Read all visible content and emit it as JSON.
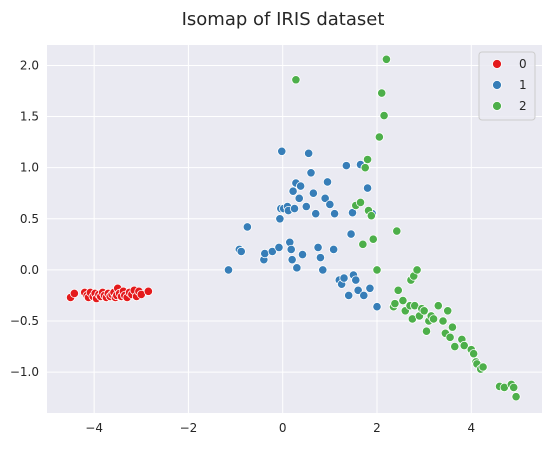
{
  "chart_data": {
    "type": "scatter",
    "title": "Isomap of IRIS dataset",
    "xlabel": "",
    "ylabel": "",
    "xlim": [
      -5.0,
      5.5
    ],
    "ylim": [
      -1.4,
      2.2
    ],
    "xticks": [
      -4,
      -2,
      0,
      2,
      4
    ],
    "xtick_labels": [
      "−4",
      "−2",
      "0",
      "2",
      "4"
    ],
    "yticks": [
      -1.0,
      -0.5,
      0.0,
      0.5,
      1.0,
      1.5,
      2.0
    ],
    "ytick_labels": [
      "−1.0",
      "−0.5",
      "0.0",
      "0.5",
      "1.0",
      "1.5",
      "2.0"
    ],
    "grid": true,
    "legend_position": "top-right",
    "series": [
      {
        "name": "0",
        "color": "#e41a1c",
        "points": [
          [
            -4.5,
            -0.27
          ],
          [
            -4.42,
            -0.23
          ],
          [
            -4.2,
            -0.22
          ],
          [
            -4.15,
            -0.25
          ],
          [
            -4.12,
            -0.27
          ],
          [
            -4.08,
            -0.22
          ],
          [
            -4.02,
            -0.26
          ],
          [
            -3.98,
            -0.23
          ],
          [
            -3.95,
            -0.28
          ],
          [
            -3.9,
            -0.24
          ],
          [
            -3.86,
            -0.26
          ],
          [
            -3.82,
            -0.22
          ],
          [
            -3.78,
            -0.25
          ],
          [
            -3.74,
            -0.27
          ],
          [
            -3.7,
            -0.23
          ],
          [
            -3.66,
            -0.26
          ],
          [
            -3.62,
            -0.24
          ],
          [
            -3.58,
            -0.22
          ],
          [
            -3.55,
            -0.27
          ],
          [
            -3.52,
            -0.25
          ],
          [
            -3.5,
            -0.18
          ],
          [
            -3.46,
            -0.23
          ],
          [
            -3.42,
            -0.26
          ],
          [
            -3.38,
            -0.21
          ],
          [
            -3.35,
            -0.25
          ],
          [
            -3.3,
            -0.27
          ],
          [
            -3.25,
            -0.22
          ],
          [
            -3.2,
            -0.24
          ],
          [
            -3.15,
            -0.2
          ],
          [
            -3.1,
            -0.26
          ],
          [
            -3.05,
            -0.21
          ],
          [
            -3.0,
            -0.24
          ],
          [
            -2.85,
            -0.21
          ]
        ]
      },
      {
        "name": "1",
        "color": "#377eb8",
        "points": [
          [
            -1.15,
            0.0
          ],
          [
            -0.92,
            0.2
          ],
          [
            -0.88,
            0.18
          ],
          [
            -0.75,
            0.42
          ],
          [
            -0.4,
            0.1
          ],
          [
            -0.38,
            0.16
          ],
          [
            -0.22,
            0.18
          ],
          [
            -0.08,
            0.22
          ],
          [
            -0.06,
            0.5
          ],
          [
            -0.04,
            0.6
          ],
          [
            -0.02,
            1.16
          ],
          [
            0.02,
            0.6
          ],
          [
            0.1,
            0.62
          ],
          [
            0.12,
            0.58
          ],
          [
            0.15,
            0.27
          ],
          [
            0.18,
            0.2
          ],
          [
            0.2,
            0.1
          ],
          [
            0.22,
            0.77
          ],
          [
            0.25,
            0.6
          ],
          [
            0.28,
            0.85
          ],
          [
            0.3,
            0.02
          ],
          [
            0.35,
            0.7
          ],
          [
            0.38,
            0.82
          ],
          [
            0.42,
            0.15
          ],
          [
            0.5,
            0.62
          ],
          [
            0.55,
            1.14
          ],
          [
            0.6,
            0.95
          ],
          [
            0.65,
            0.75
          ],
          [
            0.7,
            0.55
          ],
          [
            0.75,
            0.22
          ],
          [
            0.8,
            0.12
          ],
          [
            0.85,
            0.0
          ],
          [
            0.9,
            0.7
          ],
          [
            0.95,
            0.86
          ],
          [
            1.0,
            0.64
          ],
          [
            1.08,
            0.2
          ],
          [
            1.1,
            0.55
          ],
          [
            1.2,
            -0.1
          ],
          [
            1.25,
            -0.14
          ],
          [
            1.3,
            -0.08
          ],
          [
            1.35,
            1.02
          ],
          [
            1.4,
            -0.25
          ],
          [
            1.45,
            0.35
          ],
          [
            1.48,
            0.56
          ],
          [
            1.5,
            -0.05
          ],
          [
            1.55,
            -0.1
          ],
          [
            1.6,
            -0.2
          ],
          [
            1.65,
            1.03
          ],
          [
            1.72,
            -0.25
          ],
          [
            1.8,
            0.8
          ],
          [
            1.85,
            -0.18
          ],
          [
            1.9,
            0.55
          ],
          [
            2.0,
            -0.36
          ]
        ]
      },
      {
        "name": "2",
        "color": "#4daf4a",
        "points": [
          [
            0.28,
            1.86
          ],
          [
            1.55,
            0.63
          ],
          [
            1.65,
            0.66
          ],
          [
            1.7,
            0.25
          ],
          [
            1.75,
            1.0
          ],
          [
            1.8,
            1.08
          ],
          [
            1.82,
            0.58
          ],
          [
            1.88,
            0.53
          ],
          [
            1.92,
            0.3
          ],
          [
            2.0,
            0.0
          ],
          [
            2.05,
            1.3
          ],
          [
            2.1,
            1.73
          ],
          [
            2.15,
            1.51
          ],
          [
            2.2,
            2.06
          ],
          [
            2.35,
            -0.36
          ],
          [
            2.38,
            -0.33
          ],
          [
            2.42,
            0.38
          ],
          [
            2.45,
            -0.2
          ],
          [
            2.55,
            -0.3
          ],
          [
            2.6,
            -0.4
          ],
          [
            2.7,
            -0.35
          ],
          [
            2.72,
            -0.1
          ],
          [
            2.75,
            -0.48
          ],
          [
            2.78,
            -0.06
          ],
          [
            2.8,
            -0.35
          ],
          [
            2.85,
            0.0
          ],
          [
            2.9,
            -0.45
          ],
          [
            2.95,
            -0.38
          ],
          [
            3.0,
            -0.4
          ],
          [
            3.05,
            -0.6
          ],
          [
            3.1,
            -0.5
          ],
          [
            3.15,
            -0.45
          ],
          [
            3.2,
            -0.48
          ],
          [
            3.3,
            -0.35
          ],
          [
            3.4,
            -0.5
          ],
          [
            3.45,
            -0.62
          ],
          [
            3.5,
            -0.4
          ],
          [
            3.55,
            -0.66
          ],
          [
            3.6,
            -0.56
          ],
          [
            3.65,
            -0.75
          ],
          [
            3.8,
            -0.68
          ],
          [
            3.85,
            -0.74
          ],
          [
            4.0,
            -0.78
          ],
          [
            4.05,
            -0.82
          ],
          [
            4.1,
            -0.9
          ],
          [
            4.12,
            -0.92
          ],
          [
            4.2,
            -0.97
          ],
          [
            4.25,
            -0.95
          ],
          [
            4.6,
            -1.14
          ],
          [
            4.7,
            -1.15
          ],
          [
            4.85,
            -1.12
          ],
          [
            4.9,
            -1.15
          ],
          [
            4.95,
            -1.24
          ]
        ]
      }
    ]
  }
}
